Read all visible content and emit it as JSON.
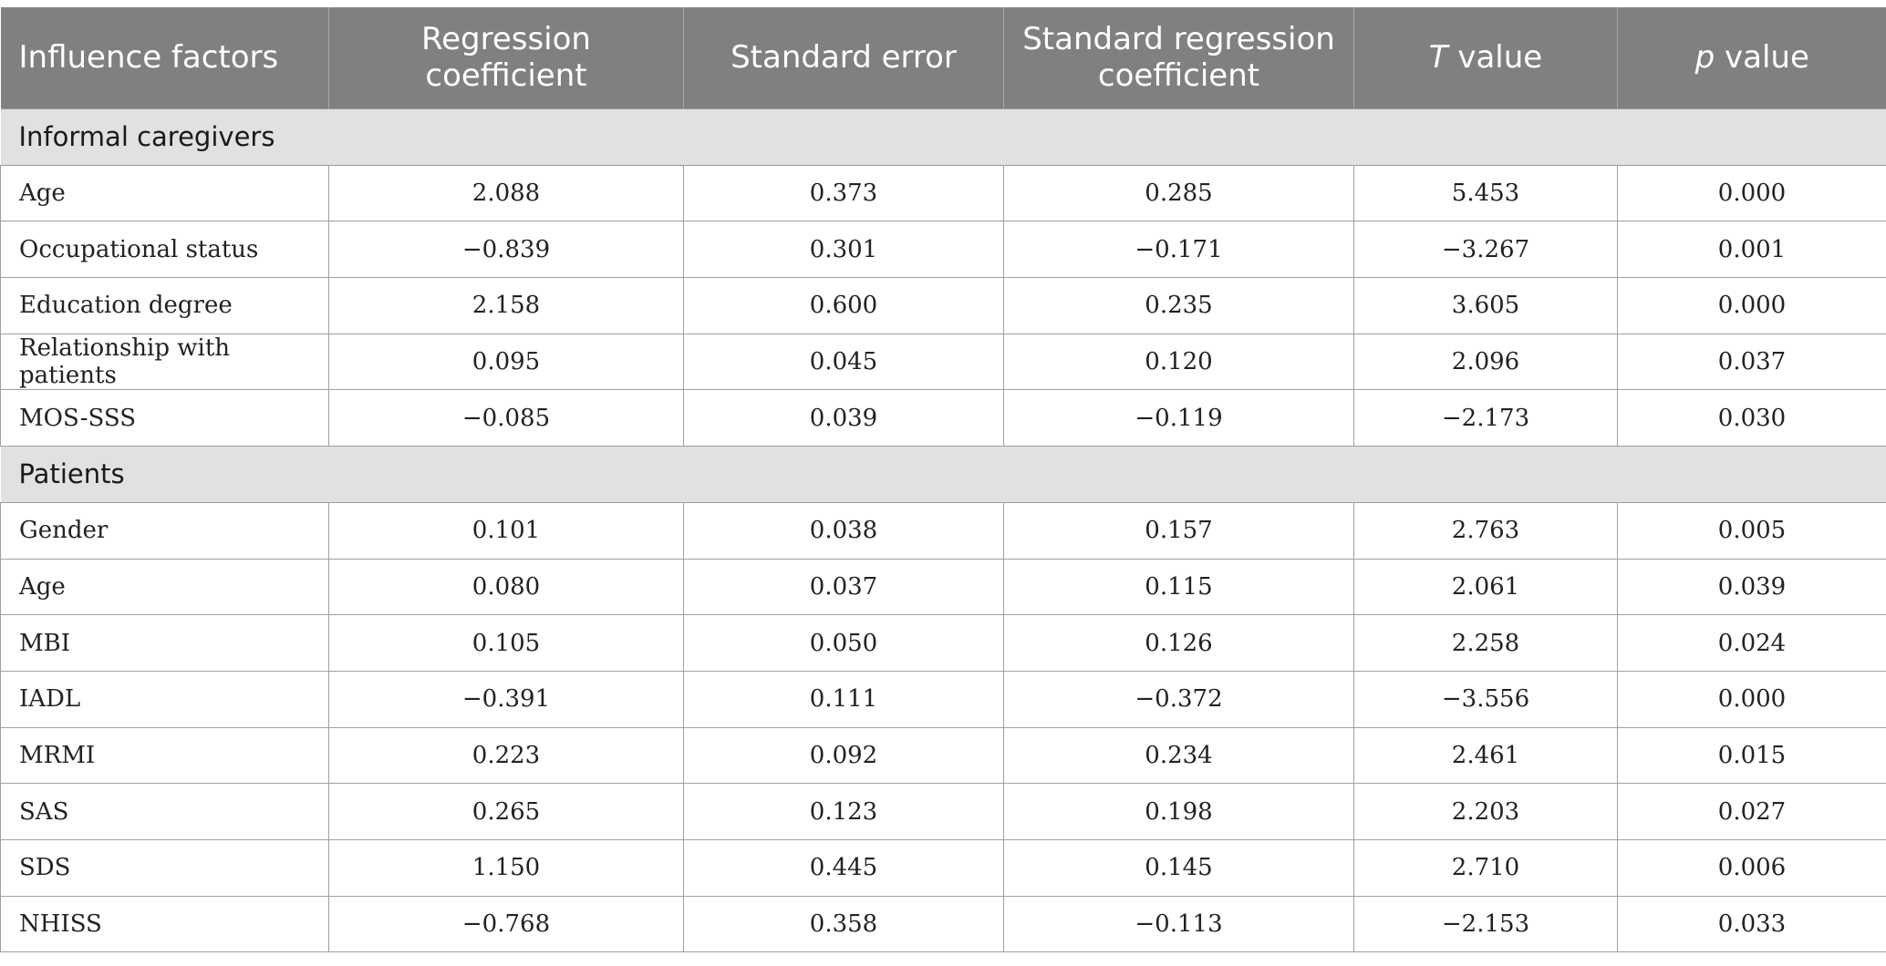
{
  "table": {
    "headers": [
      {
        "label": "Influence factors",
        "italic": ""
      },
      {
        "label": "Regression coefficient",
        "italic": ""
      },
      {
        "label": "Standard error",
        "italic": ""
      },
      {
        "label": "Standard regression coefficient",
        "italic": ""
      },
      {
        "label": " value",
        "italic": "T"
      },
      {
        "label": " value",
        "italic": "p"
      }
    ],
    "sections": [
      {
        "title": "Informal caregivers",
        "rows": [
          [
            "Age",
            "2.088",
            "0.373",
            "0.285",
            "5.453",
            "0.000"
          ],
          [
            "Occupational status",
            "−0.839",
            "0.301",
            "−0.171",
            "−3.267",
            "0.001"
          ],
          [
            "Education degree",
            "2.158",
            "0.600",
            "0.235",
            "3.605",
            "0.000"
          ],
          [
            "Relationship with patients",
            "0.095",
            "0.045",
            "0.120",
            "2.096",
            "0.037"
          ],
          [
            "MOS-SSS",
            "−0.085",
            "0.039",
            "−0.119",
            "−2.173",
            "0.030"
          ]
        ]
      },
      {
        "title": "Patients",
        "rows": [
          [
            "Gender",
            "0.101",
            "0.038",
            "0.157",
            "2.763",
            "0.005"
          ],
          [
            "Age",
            "0.080",
            "0.037",
            "0.115",
            "2.061",
            "0.039"
          ],
          [
            "MBI",
            "0.105",
            "0.050",
            "0.126",
            "2.258",
            "0.024"
          ],
          [
            "IADL",
            "−0.391",
            "0.111",
            "−0.372",
            "−3.556",
            "0.000"
          ],
          [
            "MRMI",
            "0.223",
            "0.092",
            "0.234",
            "2.461",
            "0.015"
          ],
          [
            "SAS",
            "0.265",
            "0.123",
            "0.198",
            "2.203",
            "0.027"
          ],
          [
            "SDS",
            "1.150",
            "0.445",
            "0.145",
            "2.710",
            "0.006"
          ],
          [
            "NHISS",
            "−0.768",
            "0.358",
            "−0.113",
            "−2.153",
            "0.033"
          ]
        ]
      }
    ]
  }
}
